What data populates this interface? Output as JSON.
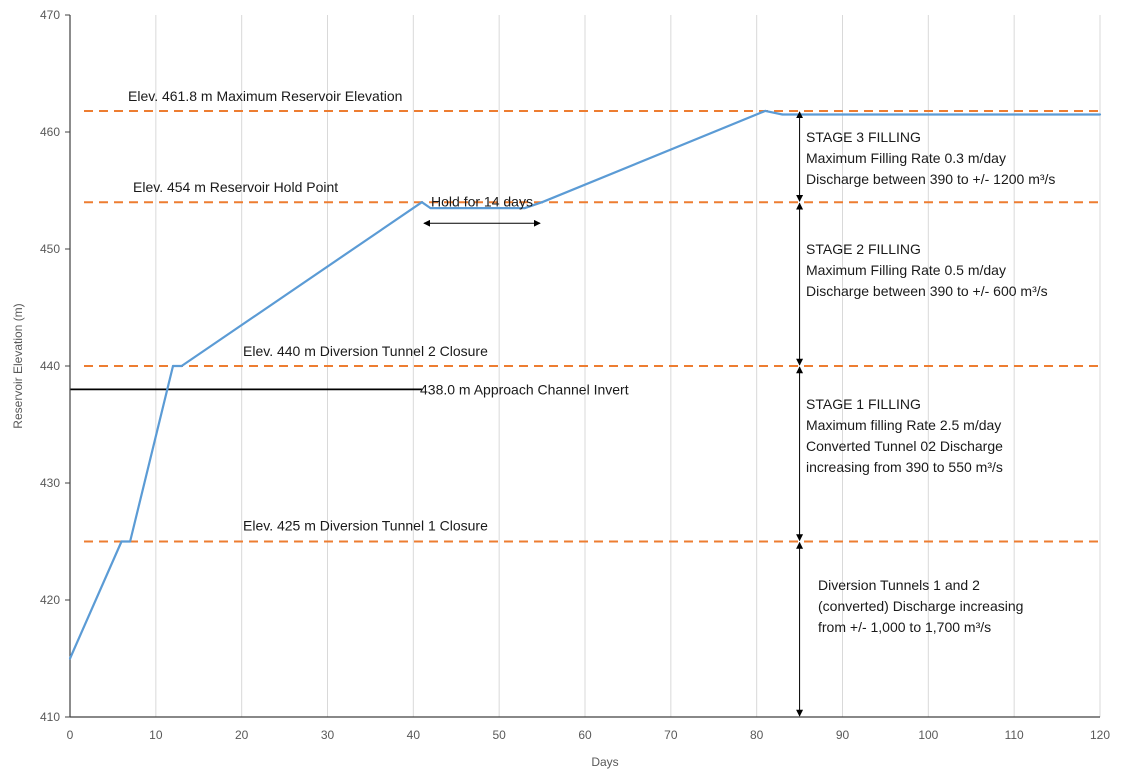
{
  "chart_data": {
    "type": "line",
    "title": "",
    "xlabel": "Days",
    "ylabel": "Reservoir Elevation (m)",
    "xlim": [
      0,
      120
    ],
    "ylim": [
      410,
      470
    ],
    "x_ticks": [
      0,
      10,
      20,
      30,
      40,
      50,
      60,
      70,
      80,
      90,
      100,
      110,
      120
    ],
    "y_ticks": [
      410,
      420,
      430,
      440,
      450,
      460,
      470
    ],
    "grid": "vertical",
    "legend": "none",
    "series": [
      {
        "color": "#5b9bd5",
        "x": [
          0,
          6,
          7,
          12,
          13,
          41,
          42,
          53,
          55,
          81,
          83,
          120
        ],
        "y": [
          415,
          425,
          425,
          440,
          440,
          454,
          453.5,
          453.5,
          454,
          461.8,
          461.5,
          461.5
        ]
      }
    ],
    "reference_lines": [
      {
        "y": 461.8,
        "color": "#ed7d31",
        "style": "dashed",
        "label": "Elev. 461.8 m Maximum Reservoir Elevation"
      },
      {
        "y": 454,
        "color": "#ed7d31",
        "style": "dashed",
        "label": "Elev. 454 m Reservoir Hold Point"
      },
      {
        "y": 440,
        "color": "#ed7d31",
        "style": "dashed",
        "label": "Elev. 440 m  Diversion Tunnel 2 Closure"
      },
      {
        "y": 425,
        "color": "#ed7d31",
        "style": "dashed",
        "label": "Elev. 425 m Diversion Tunnel 1 Closure"
      },
      {
        "y": 438,
        "x_end": 41,
        "color": "#000000",
        "style": "solid",
        "label": "438.0 m Approach Channel Invert"
      }
    ],
    "hold_annotation": {
      "label": "Hold for 14 days",
      "x_start": 41,
      "x_end": 55,
      "y": 452.2
    },
    "stage_markers_x": 85,
    "stages": [
      {
        "y_from": 454,
        "y_to": 461.8,
        "lines": [
          "STAGE 3 FILLING",
          "Maximum Filling Rate 0.3 m/day",
          "Discharge between 390 to +/- 1200 m³/s"
        ]
      },
      {
        "y_from": 440,
        "y_to": 454,
        "lines": [
          "STAGE 2 FILLING",
          "Maximum Filling Rate 0.5 m/day",
          "Discharge between 390 to +/- 600 m³/s"
        ]
      },
      {
        "y_from": 425,
        "y_to": 440,
        "lines": [
          "STAGE 1 FILLING",
          "Maximum filling Rate 2.5 m/day",
          "Converted Tunnel 02 Discharge",
          "increasing from 390 to 550 m³/s"
        ]
      },
      {
        "y_from": 410,
        "y_to": 425,
        "lines": [
          "Diversion Tunnels 1 and 2",
          "(converted) Discharge increasing",
          "from +/-  1,000 to 1,700 m³/s"
        ]
      }
    ]
  }
}
